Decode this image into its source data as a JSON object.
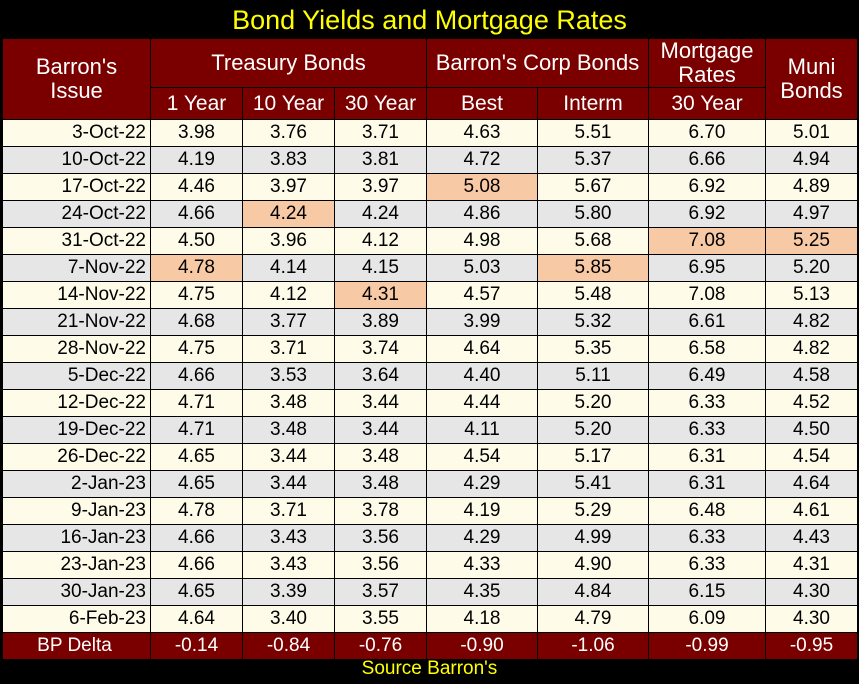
{
  "title": "Bond Yields and Mortgage Rates",
  "source": "Source Barron's",
  "colors": {
    "header_bg": "#7a0000",
    "title_text": "#ffff00",
    "row_light": "#fffbe9",
    "row_gray": "#e6e6e6",
    "highlight": "#f8c9a5"
  },
  "headers": {
    "issue": [
      "Barron's",
      "Issue"
    ],
    "treasury": "Treasury Bonds",
    "corp": "Barron's Corp Bonds",
    "mortgage": [
      "Mortgage",
      "Rates"
    ],
    "muni": [
      "Muni",
      "Bonds"
    ],
    "sub": [
      "1 Year",
      "10 Year",
      "30 Year",
      "Best",
      "Interm",
      "30 Year"
    ]
  },
  "rows": [
    {
      "date": "3-Oct-22",
      "v": [
        "3.98",
        "3.76",
        "3.71",
        "4.63",
        "5.51",
        "6.70",
        "5.01"
      ]
    },
    {
      "date": "10-Oct-22",
      "v": [
        "4.19",
        "3.83",
        "3.81",
        "4.72",
        "5.37",
        "6.66",
        "4.94"
      ]
    },
    {
      "date": "17-Oct-22",
      "v": [
        "4.46",
        "3.97",
        "3.97",
        "5.08",
        "5.67",
        "6.92",
        "4.89"
      ]
    },
    {
      "date": "24-Oct-22",
      "v": [
        "4.66",
        "4.24",
        "4.24",
        "4.86",
        "5.80",
        "6.92",
        "4.97"
      ]
    },
    {
      "date": "31-Oct-22",
      "v": [
        "4.50",
        "3.96",
        "4.12",
        "4.98",
        "5.68",
        "7.08",
        "5.25"
      ]
    },
    {
      "date": "7-Nov-22",
      "v": [
        "4.78",
        "4.14",
        "4.15",
        "5.03",
        "5.85",
        "6.95",
        "5.20"
      ]
    },
    {
      "date": "14-Nov-22",
      "v": [
        "4.75",
        "4.12",
        "4.31",
        "4.57",
        "5.48",
        "7.08",
        "5.13"
      ]
    },
    {
      "date": "21-Nov-22",
      "v": [
        "4.68",
        "3.77",
        "3.89",
        "3.99",
        "5.32",
        "6.61",
        "4.82"
      ]
    },
    {
      "date": "28-Nov-22",
      "v": [
        "4.75",
        "3.71",
        "3.74",
        "4.64",
        "5.35",
        "6.58",
        "4.82"
      ]
    },
    {
      "date": "5-Dec-22",
      "v": [
        "4.66",
        "3.53",
        "3.64",
        "4.40",
        "5.11",
        "6.49",
        "4.58"
      ]
    },
    {
      "date": "12-Dec-22",
      "v": [
        "4.71",
        "3.48",
        "3.44",
        "4.44",
        "5.20",
        "6.33",
        "4.52"
      ]
    },
    {
      "date": "19-Dec-22",
      "v": [
        "4.71",
        "3.48",
        "3.44",
        "4.11",
        "5.20",
        "6.33",
        "4.50"
      ]
    },
    {
      "date": "26-Dec-22",
      "v": [
        "4.65",
        "3.44",
        "3.48",
        "4.54",
        "5.17",
        "6.31",
        "4.54"
      ]
    },
    {
      "date": "2-Jan-23",
      "v": [
        "4.65",
        "3.44",
        "3.48",
        "4.29",
        "5.41",
        "6.31",
        "4.64"
      ]
    },
    {
      "date": "9-Jan-23",
      "v": [
        "4.78",
        "3.71",
        "3.78",
        "4.19",
        "5.29",
        "6.48",
        "4.61"
      ]
    },
    {
      "date": "16-Jan-23",
      "v": [
        "4.66",
        "3.43",
        "3.56",
        "4.29",
        "4.99",
        "6.33",
        "4.43"
      ]
    },
    {
      "date": "23-Jan-23",
      "v": [
        "4.66",
        "3.43",
        "3.56",
        "4.33",
        "4.90",
        "6.33",
        "4.31"
      ]
    },
    {
      "date": "30-Jan-23",
      "v": [
        "4.65",
        "3.39",
        "3.57",
        "4.35",
        "4.84",
        "6.15",
        "4.30"
      ]
    },
    {
      "date": "6-Feb-23",
      "v": [
        "4.64",
        "3.40",
        "3.55",
        "4.18",
        "4.79",
        "6.09",
        "4.30"
      ]
    }
  ],
  "highlights": [
    {
      "row": 2,
      "col": 3
    },
    {
      "row": 3,
      "col": 1
    },
    {
      "row": 4,
      "col": 5
    },
    {
      "row": 4,
      "col": 6
    },
    {
      "row": 5,
      "col": 0
    },
    {
      "row": 5,
      "col": 4
    },
    {
      "row": 6,
      "col": 2
    }
  ],
  "delta": {
    "label": "BP Delta",
    "v": [
      "-0.14",
      "-0.84",
      "-0.76",
      "-0.90",
      "-1.06",
      "-0.99",
      "-0.95"
    ]
  }
}
